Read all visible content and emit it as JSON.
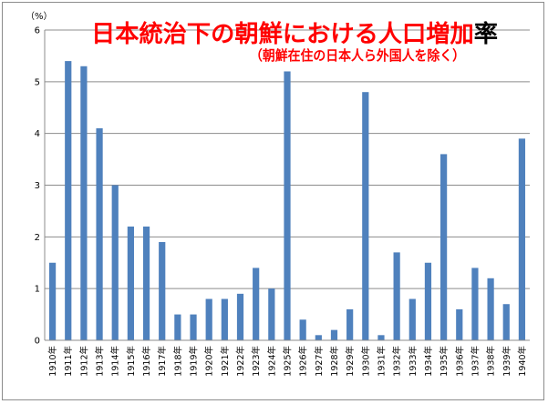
{
  "chart_data": {
    "type": "bar",
    "title": "日本統治下の朝鮮における人口増加率",
    "subtitle": "（朝鮮在住の日本人ら外国人を除く）",
    "ylabel": "（%）",
    "xlabel": "",
    "ylim": [
      0,
      6
    ],
    "yticks": [
      0,
      1,
      2,
      3,
      4,
      5,
      6
    ],
    "grid": true,
    "legend": "none",
    "categories": [
      "1910年",
      "1911年",
      "1912年",
      "1913年",
      "1914年",
      "1915年",
      "1916年",
      "1917年",
      "1918年",
      "1919年",
      "1920年",
      "1921年",
      "1922年",
      "1923年",
      "1924年",
      "1925年",
      "1926年",
      "1927年",
      "1928年",
      "1929年",
      "1930年",
      "1931年",
      "1932年",
      "1933年",
      "1934年",
      "1935年",
      "1936年",
      "1937年",
      "1938年",
      "1939年",
      "1940年"
    ],
    "values": [
      1.5,
      5.4,
      5.3,
      4.1,
      3.0,
      2.2,
      2.2,
      1.9,
      0.5,
      0.5,
      0.8,
      0.8,
      0.9,
      1.4,
      1.0,
      5.2,
      0.4,
      0.1,
      0.2,
      0.6,
      4.8,
      0.1,
      1.7,
      0.8,
      1.5,
      3.6,
      0.6,
      1.4,
      1.2,
      0.7,
      3.9
    ],
    "colors": {
      "bar": "#4f81bd",
      "title": "#ff0000",
      "title_last_char": "#000000",
      "subtitle": "#ff0000",
      "grid": "#8c8c8c",
      "axis_text": "#000000"
    }
  }
}
